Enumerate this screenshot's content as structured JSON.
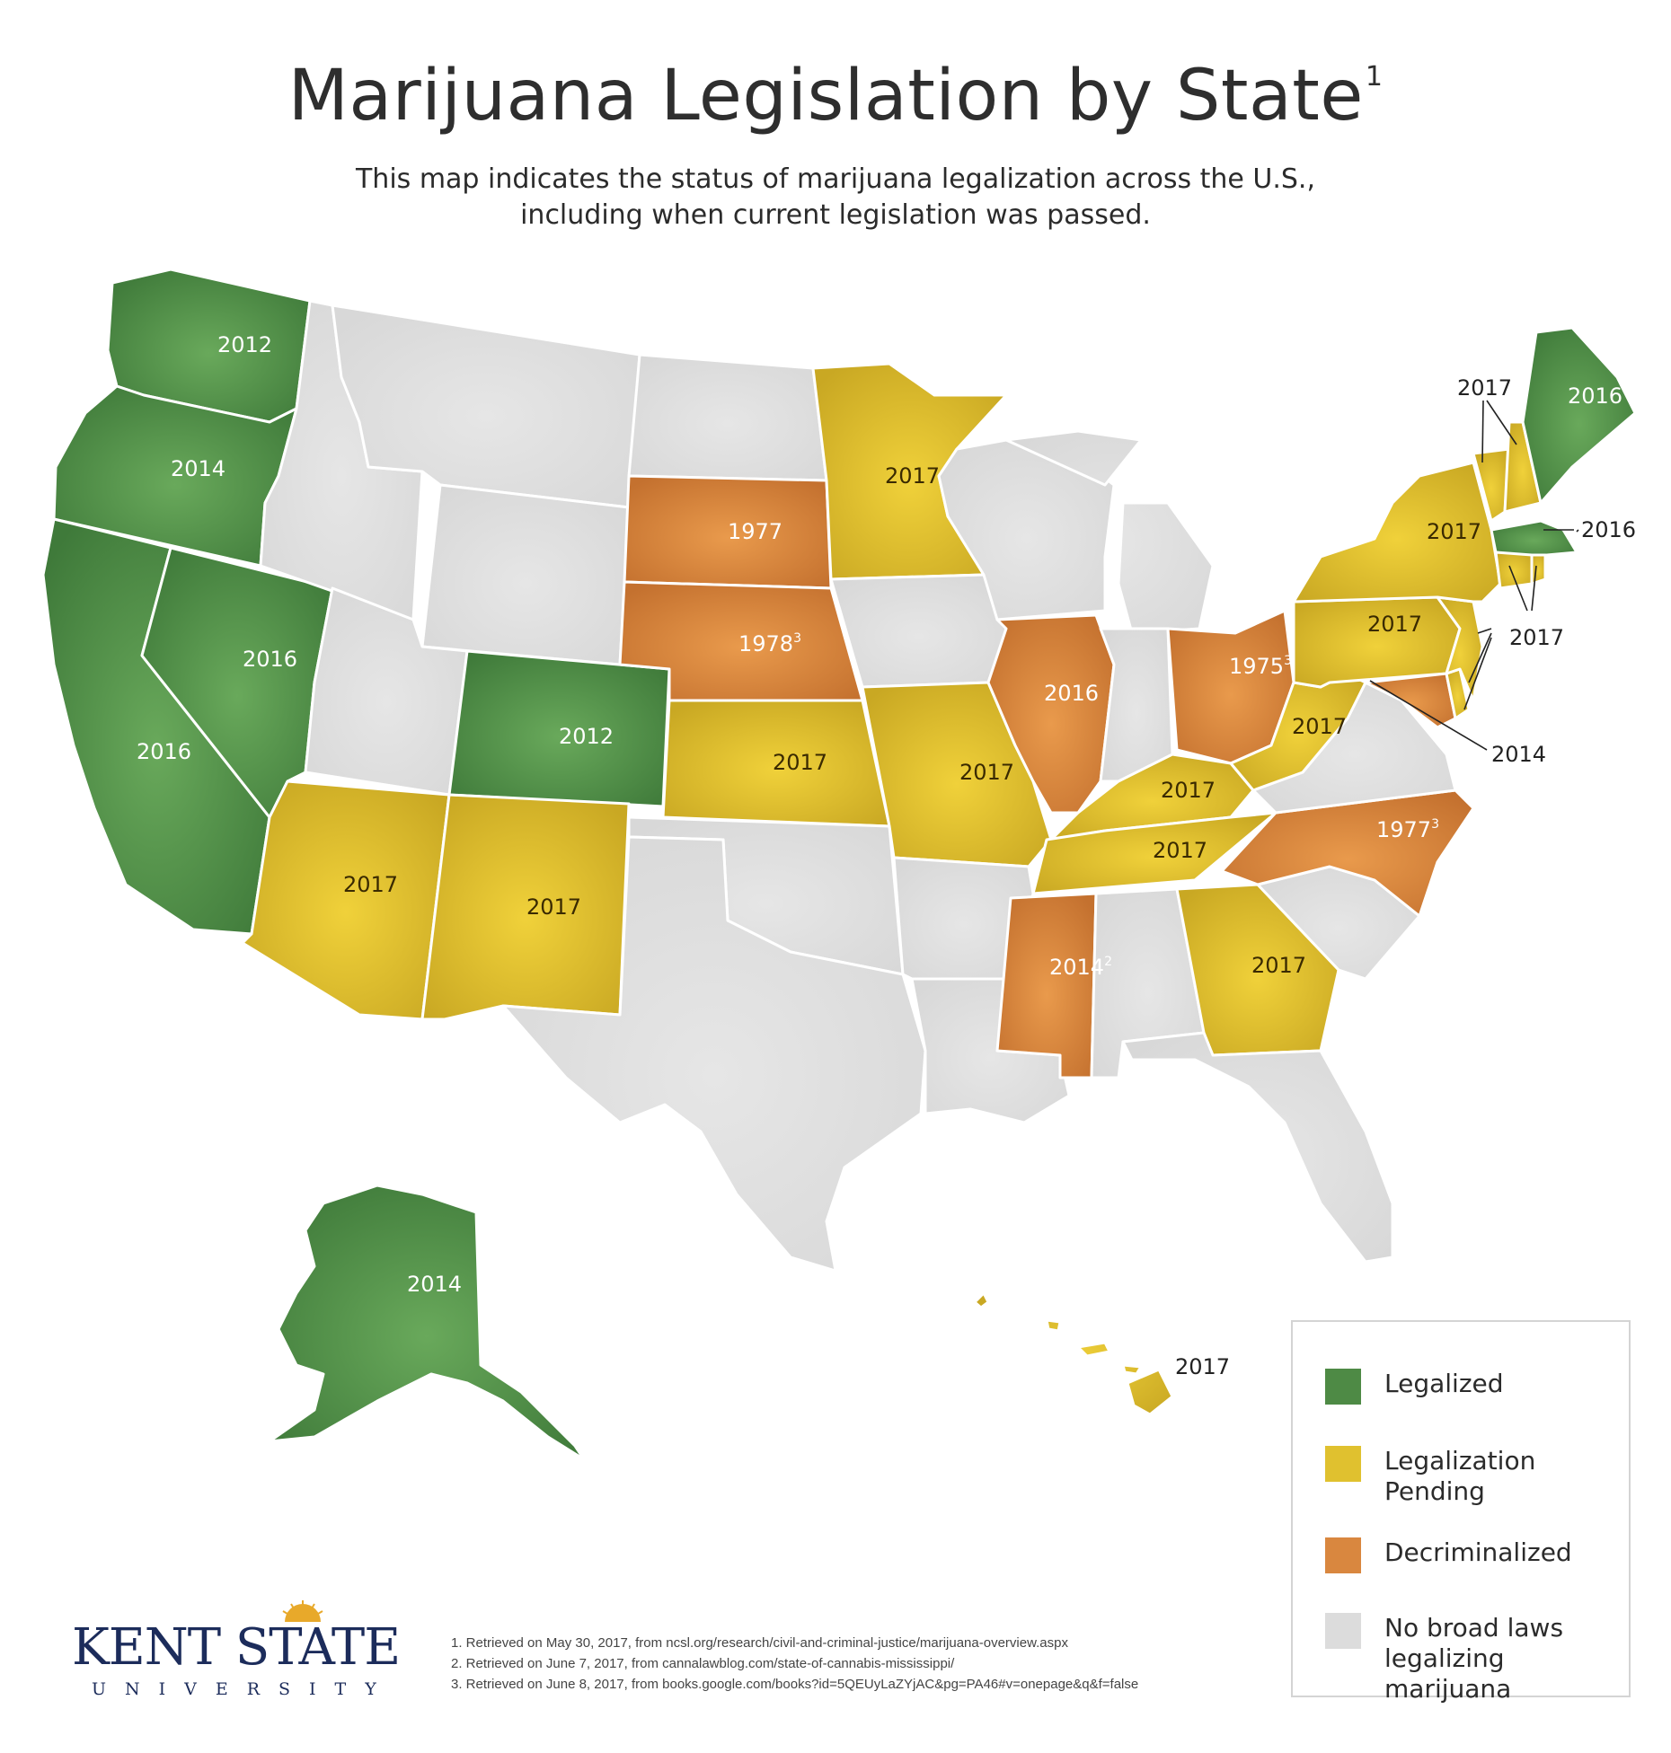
{
  "title": "Marijuana Legislation by State",
  "title_sup": "1",
  "subtitle_line1": "This map indicates the status of marijuana legalization across the U.S.,",
  "subtitle_line2": "including when current legislation was passed.",
  "colors": {
    "legalized": "#4e8a45",
    "pending": "#e0c12f",
    "decriminalized": "#d9873f",
    "none": "#dcdcdc"
  },
  "states": {
    "WA": {
      "status": "legalized",
      "year": "2012"
    },
    "OR": {
      "status": "legalized",
      "year": "2014"
    },
    "CA": {
      "status": "legalized",
      "year": "2016"
    },
    "NV": {
      "status": "legalized",
      "year": "2016"
    },
    "CO": {
      "status": "legalized",
      "year": "2012"
    },
    "AK": {
      "status": "legalized",
      "year": "2014"
    },
    "ME": {
      "status": "legalized",
      "year": "2016"
    },
    "MA": {
      "status": "legalized",
      "year": "2016"
    },
    "AZ": {
      "status": "pending",
      "year": "2017"
    },
    "NM": {
      "status": "pending",
      "year": "2017"
    },
    "KS": {
      "status": "pending",
      "year": "2017"
    },
    "MN": {
      "status": "pending",
      "year": "2017"
    },
    "MO": {
      "status": "pending",
      "year": "2017"
    },
    "KY": {
      "status": "pending",
      "year": "2017"
    },
    "TN": {
      "status": "pending",
      "year": "2017"
    },
    "GA": {
      "status": "pending",
      "year": "2017"
    },
    "WV": {
      "status": "pending",
      "year": "2017"
    },
    "PA": {
      "status": "pending",
      "year": "2017"
    },
    "NY": {
      "status": "pending",
      "year": "2017"
    },
    "VT": {
      "status": "pending",
      "year": "2017"
    },
    "NH": {
      "status": "pending",
      "year": "2017"
    },
    "CT": {
      "status": "pending",
      "year": "2017"
    },
    "RI": {
      "status": "pending",
      "year": "2017"
    },
    "NJ": {
      "status": "pending",
      "year": "2017"
    },
    "DE": {
      "status": "pending",
      "year": "2017"
    },
    "HI": {
      "status": "pending",
      "year": "2017"
    },
    "MD": {
      "status": "decriminalized",
      "year": "2014"
    },
    "SD": {
      "status": "decriminalized",
      "year": "1977"
    },
    "NE": {
      "status": "decriminalized",
      "year": "1978",
      "sup": "3"
    },
    "IL": {
      "status": "decriminalized",
      "year": "2016"
    },
    "OH": {
      "status": "decriminalized",
      "year": "1975",
      "sup": "3"
    },
    "NC": {
      "status": "decriminalized",
      "year": "1977",
      "sup": "3"
    },
    "MS": {
      "status": "decriminalized",
      "year": "2014",
      "sup": "2"
    }
  },
  "legend": [
    {
      "key": "legalized",
      "label": "Legalized"
    },
    {
      "key": "pending",
      "label": "Legalization Pending"
    },
    {
      "key": "decriminalized",
      "label": "Decriminalized"
    },
    {
      "key": "none",
      "label": "No broad laws legalizing marijuana"
    }
  ],
  "logo": {
    "main": "KENT STATE",
    "sub": "UNIVERSITY"
  },
  "footnotes": [
    "1. Retrieved on May 30, 2017, from ncsl.org/research/civil-and-criminal-justice/marijuana-overview.aspx",
    "2. Retrieved on June 7, 2017, from cannalawblog.com/state-of-cannabis-mississippi/",
    "3. Retrieved on June 8, 2017, from books.google.com/books?id=5QEUyLaZYjAC&pg=PA46#v=onepage&q&f=false"
  ]
}
